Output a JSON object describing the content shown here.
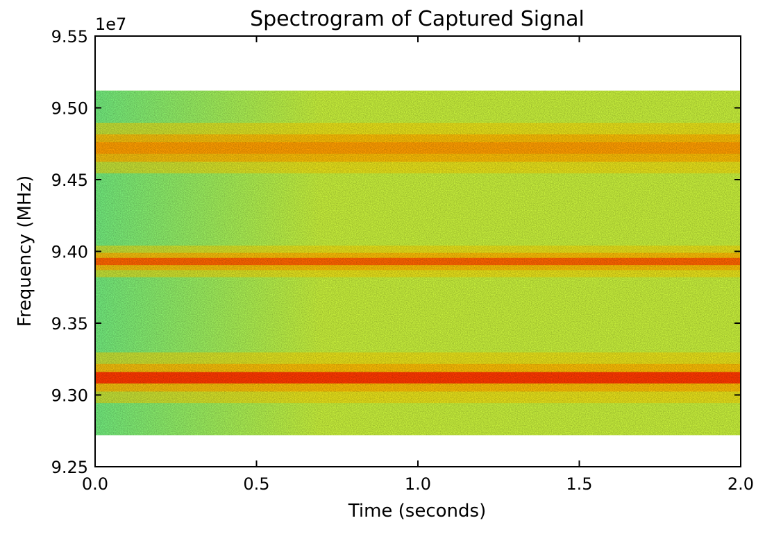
{
  "chart_data": {
    "type": "heatmap",
    "title": "Spectrogram of Captured Signal",
    "xlabel": "Time (seconds)",
    "ylabel": "Frequency (MHz)",
    "y_offset_label": "1e7",
    "xlim": [
      0.0,
      2.0
    ],
    "ylim": [
      9.25,
      9.55
    ],
    "y_data_extent": [
      9.272,
      9.512
    ],
    "x_ticks": [
      "0.0",
      "0.5",
      "1.0",
      "1.5",
      "2.0"
    ],
    "y_ticks": [
      "9.25",
      "9.30",
      "9.35",
      "9.40",
      "9.45",
      "9.50",
      "9.55"
    ],
    "colormap": "jet",
    "background_color": "#c8f03c",
    "signal_bands": [
      {
        "center": 9.312,
        "width": 0.008,
        "intensity": "high",
        "color": "#ff2a00"
      },
      {
        "center": 9.393,
        "width": 0.005,
        "intensity": "medium-high",
        "color": "#ff5a00"
      },
      {
        "center": 9.472,
        "width": 0.008,
        "intensity": "medium",
        "color": "#ff9a00"
      }
    ],
    "grid": false
  }
}
